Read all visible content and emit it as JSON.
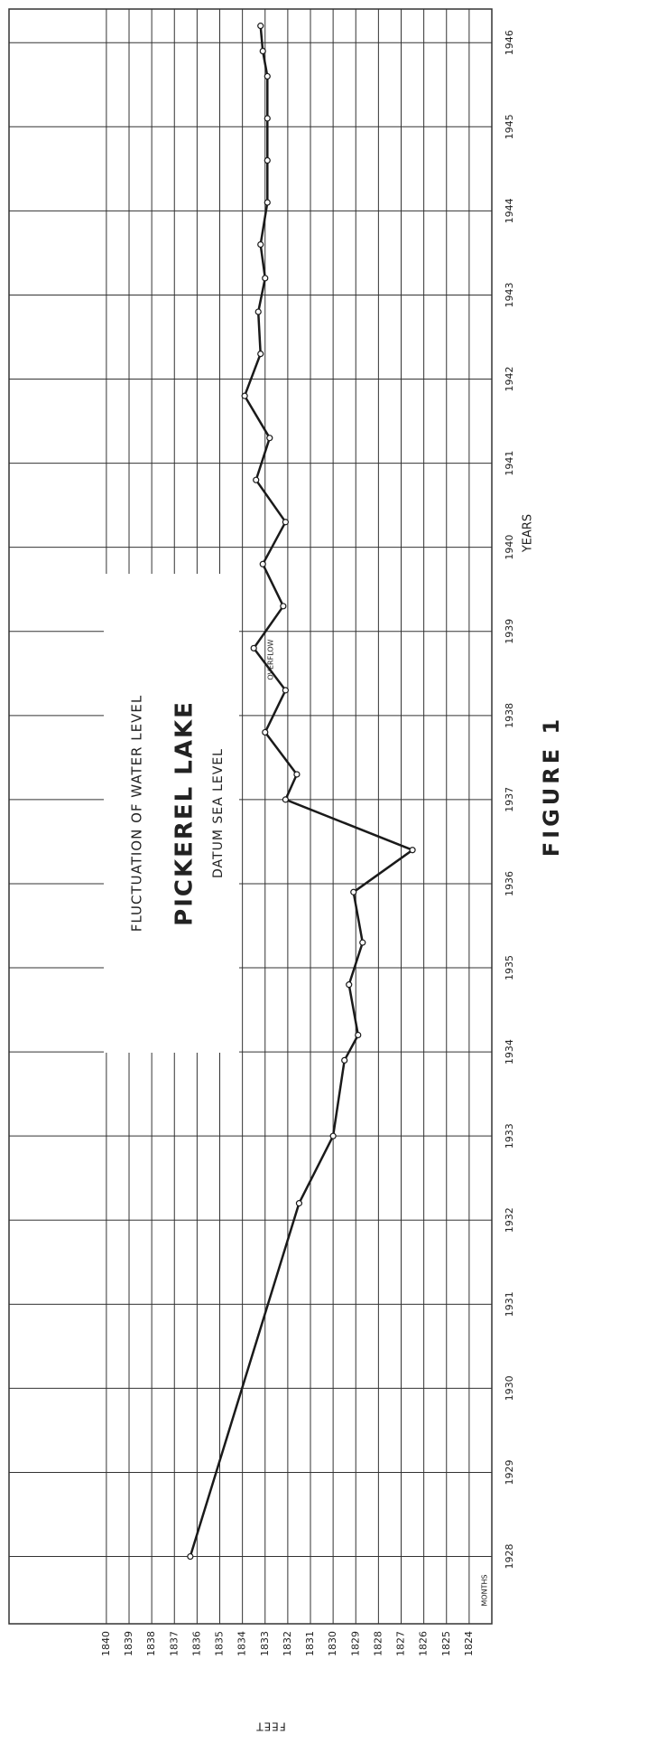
{
  "chart_data": {
    "type": "line",
    "subtitle": "FLUCTUATION OF WATER LEVEL",
    "title": "PICKEREL LAKE",
    "note": "DATUM SEA LEVEL",
    "annotation": "OVERFLOW",
    "x_label": "YEARS",
    "y_label": "FEET",
    "month_label": "MONTHS",
    "caption": "FIGURE 1",
    "x": [
      1928.0,
      1932.2,
      1933.0,
      1933.9,
      1934.2,
      1934.8,
      1935.3,
      1935.9,
      1936.4,
      1937.0,
      1937.3,
      1937.8,
      1938.3,
      1938.8,
      1939.3,
      1939.8,
      1940.3,
      1940.8,
      1941.3,
      1941.8,
      1942.3,
      1942.8,
      1943.2,
      1943.6,
      1944.1,
      1944.6,
      1945.1,
      1945.6,
      1945.9,
      1946.2
    ],
    "values": [
      1836.3,
      1831.5,
      1830.0,
      1829.5,
      1828.9,
      1829.3,
      1828.7,
      1829.1,
      1826.5,
      1832.1,
      1831.6,
      1833.0,
      1832.1,
      1833.5,
      1832.2,
      1833.1,
      1832.1,
      1833.4,
      1832.8,
      1833.9,
      1833.2,
      1833.3,
      1833.0,
      1833.2,
      1832.9,
      1832.9,
      1832.9,
      1832.9,
      1833.1,
      1833.2
    ],
    "color": "#1a1a1a",
    "xlim": [
      1927.2,
      1946.4
    ],
    "xticks": [
      1928,
      1929,
      1930,
      1931,
      1932,
      1933,
      1934,
      1935,
      1936,
      1937,
      1938,
      1939,
      1940,
      1941,
      1942,
      1943,
      1944,
      1945,
      1946
    ],
    "ylim": [
      1843.1,
      1823
    ],
    "yticks": [
      1824,
      1825,
      1826,
      1827,
      1828,
      1829,
      1830,
      1831,
      1832,
      1833,
      1834,
      1835,
      1836,
      1837,
      1838,
      1839,
      1840
    ],
    "grid": true
  }
}
